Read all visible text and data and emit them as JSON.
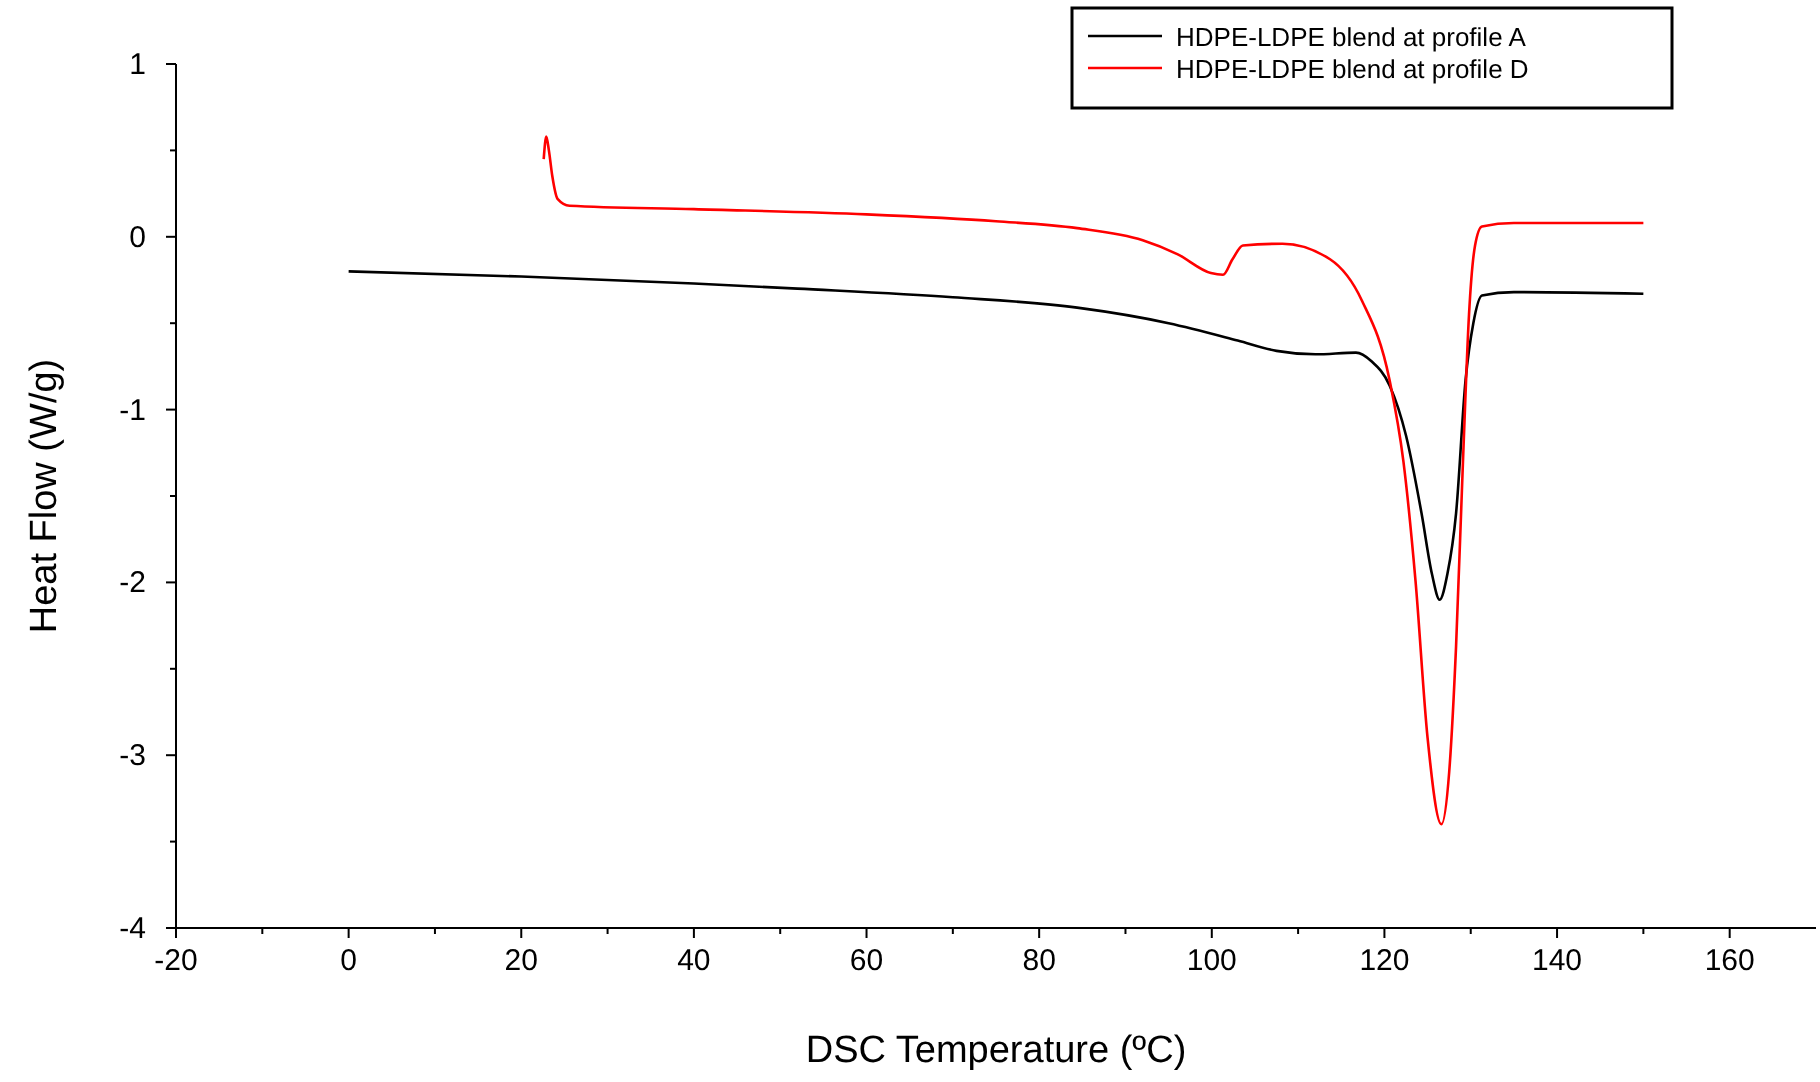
{
  "chart_data": {
    "type": "line",
    "xlabel": "DSC Temperature (ºC)",
    "ylabel": "Heat Flow (W/g)",
    "xlim": [
      -20,
      170
    ],
    "ylim": [
      -4,
      1
    ],
    "xticks": [
      -20,
      {
        "value": -10,
        "label": null
      },
      0,
      {
        "value": 10,
        "label": null
      },
      20,
      {
        "value": 30,
        "label": null
      },
      40,
      {
        "value": 50,
        "label": null
      },
      60,
      {
        "value": 70,
        "label": null
      },
      80,
      {
        "value": 90,
        "label": null
      },
      100,
      {
        "value": 110,
        "label": null
      },
      120,
      {
        "value": 130,
        "label": null
      },
      140,
      {
        "value": 150,
        "label": null
      },
      160
    ],
    "yticks": [
      -4,
      {
        "value": -3.5,
        "label": null
      },
      -3,
      {
        "value": -2.5,
        "label": null
      },
      -2,
      {
        "value": -1.5,
        "label": null
      },
      -1,
      {
        "value": -0.5,
        "label": null
      },
      0,
      {
        "value": 0.5,
        "label": null
      },
      1
    ],
    "legend": "top right",
    "grid": false,
    "line_style": "solid",
    "marker": "none",
    "series": [
      {
        "name": "HDPE-LDPE blend at profile A",
        "color": "#000000",
        "x": [
          0,
          20,
          40,
          52,
          70,
          84.4,
          95,
          103,
          107.5,
          112,
          116.7,
          118.5,
          120.6,
          122.5,
          124.3,
          125.5,
          126.4,
          127.3,
          128.3,
          129.4,
          130.3,
          131.3,
          135,
          150
        ],
        "values": [
          -0.2,
          -0.23,
          -0.27,
          -0.3,
          -0.35,
          -0.41,
          -0.5,
          -0.6,
          -0.66,
          -0.68,
          -0.67,
          -0.72,
          -0.86,
          -1.15,
          -1.6,
          -1.95,
          -2.1,
          -1.95,
          -1.6,
          -0.83,
          -0.5,
          -0.34,
          -0.32,
          -0.33
        ]
      },
      {
        "name": "HDPE-LDPE blend at profile D",
        "color": "#ff0000",
        "x": [
          22.6,
          22.9,
          23.2,
          23.6,
          24.2,
          25.6,
          40,
          60,
          75,
          84.4,
          92,
          96,
          99.9,
          101.3,
          102.4,
          103.6,
          108.2,
          113.7,
          117.4,
          120.6,
          122.2,
          123.6,
          125,
          126.6,
          127.5,
          128.3,
          129.1,
          129.8,
          130.5,
          131.3,
          135,
          150
        ],
        "values": [
          0.45,
          0.58,
          0.5,
          0.35,
          0.22,
          0.18,
          0.16,
          0.13,
          0.09,
          0.05,
          -0.02,
          -0.1,
          -0.21,
          -0.22,
          -0.13,
          -0.05,
          -0.04,
          -0.13,
          -0.37,
          -0.83,
          -1.3,
          -1.99,
          -2.9,
          -3.4,
          -3.1,
          -2.37,
          -1.3,
          -0.45,
          -0.05,
          0.06,
          0.08,
          0.08
        ]
      }
    ]
  }
}
